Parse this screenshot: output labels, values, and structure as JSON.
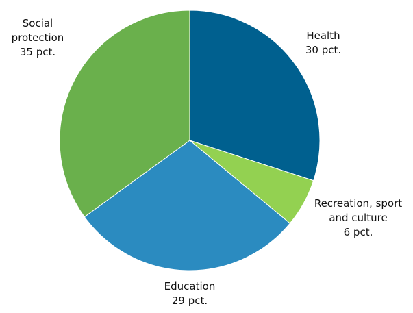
{
  "chart_data": {
    "type": "pie",
    "categories": [
      "Health",
      "Recreation, sport and culture",
      "Education",
      "Social protection"
    ],
    "values": [
      30,
      6,
      29,
      35
    ],
    "value_labels": [
      "30 pct.",
      "6 pct.",
      "29 pct.",
      "35 pct."
    ],
    "colors": [
      "#00608f",
      "#93d151",
      "#2b8bc0",
      "#6ab04c"
    ]
  }
}
